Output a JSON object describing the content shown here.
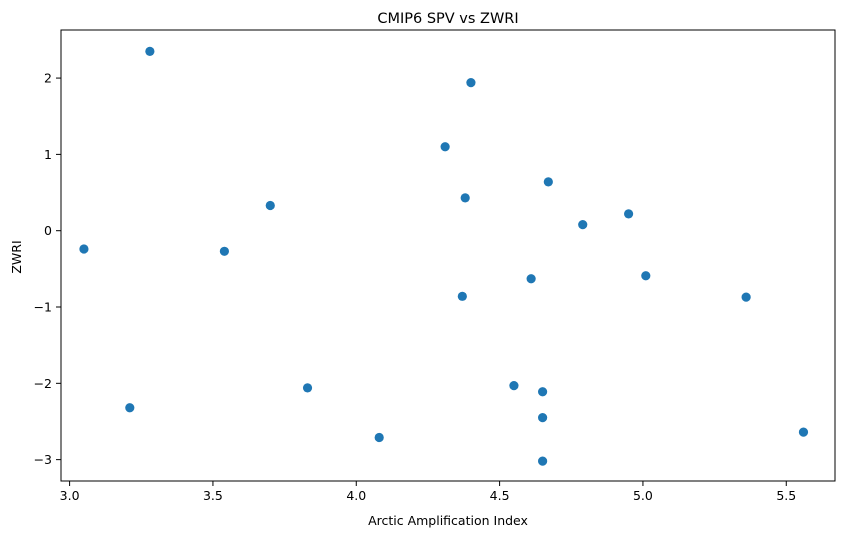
{
  "chart_data": {
    "type": "scatter",
    "title": "CMIP6 SPV vs ZWRI",
    "xlabel": "Arctic Amplification Index",
    "ylabel": "ZWRI",
    "xlim": [
      2.97,
      5.67
    ],
    "ylim": [
      -3.28,
      2.63
    ],
    "xticks": [
      3.0,
      3.5,
      4.0,
      4.5,
      5.0,
      5.5
    ],
    "xtick_labels": [
      "3.0",
      "3.5",
      "4.0",
      "4.5",
      "5.0",
      "5.5"
    ],
    "yticks": [
      -3,
      -2,
      -1,
      0,
      1,
      2
    ],
    "ytick_labels": [
      "−3",
      "−2",
      "−1",
      "0",
      "1",
      "2"
    ],
    "grid": false,
    "series": [
      {
        "color": "#1f77b4",
        "points": [
          {
            "x": 3.05,
            "y": -0.24
          },
          {
            "x": 3.21,
            "y": -2.32
          },
          {
            "x": 3.28,
            "y": 2.35
          },
          {
            "x": 3.54,
            "y": -0.27
          },
          {
            "x": 3.7,
            "y": 0.33
          },
          {
            "x": 3.83,
            "y": -2.06
          },
          {
            "x": 4.08,
            "y": -2.71
          },
          {
            "x": 4.31,
            "y": 1.1
          },
          {
            "x": 4.37,
            "y": -0.86
          },
          {
            "x": 4.38,
            "y": 0.43
          },
          {
            "x": 4.4,
            "y": 1.94
          },
          {
            "x": 4.55,
            "y": -2.03
          },
          {
            "x": 4.61,
            "y": -0.63
          },
          {
            "x": 4.65,
            "y": -2.11
          },
          {
            "x": 4.65,
            "y": -2.45
          },
          {
            "x": 4.65,
            "y": -3.02
          },
          {
            "x": 4.67,
            "y": 0.64
          },
          {
            "x": 4.79,
            "y": 0.08
          },
          {
            "x": 4.95,
            "y": 0.22
          },
          {
            "x": 5.01,
            "y": -0.59
          },
          {
            "x": 5.36,
            "y": -0.87
          },
          {
            "x": 5.56,
            "y": -2.64
          }
        ]
      }
    ]
  }
}
